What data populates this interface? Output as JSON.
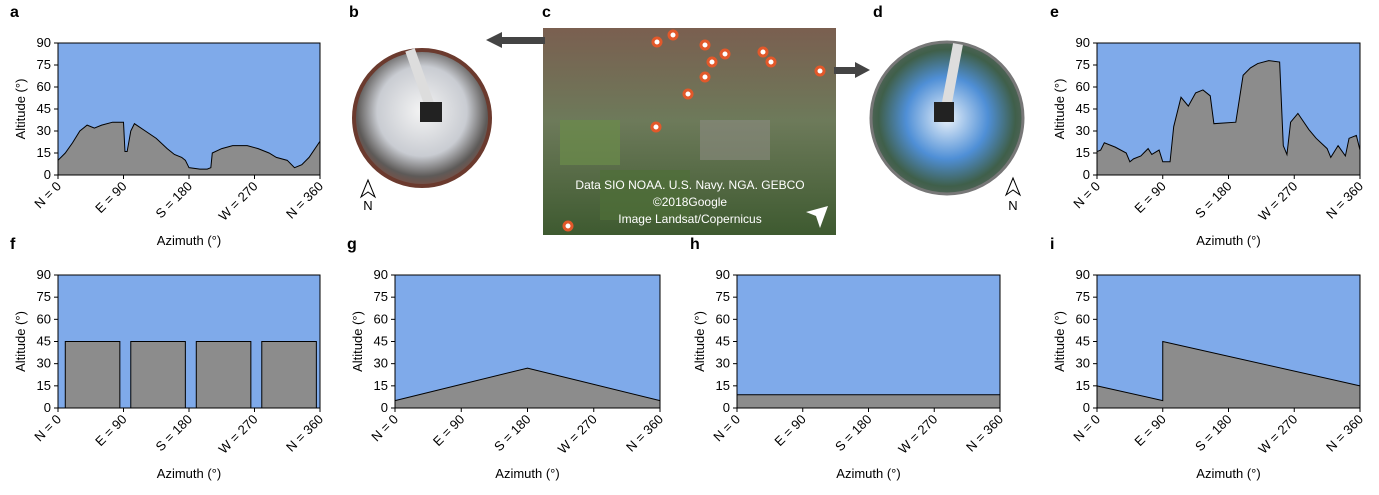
{
  "chart_data": [
    {
      "type": "area",
      "panel": "a",
      "xlabel": "Azimuth (°)",
      "ylabel": "Altitude (°)",
      "xlim": [
        0,
        360
      ],
      "ylim": [
        0,
        90
      ],
      "xticks": [
        {
          "value": 0,
          "label": "N = 0"
        },
        {
          "value": 90,
          "label": "E = 90"
        },
        {
          "value": 180,
          "label": "S = 180"
        },
        {
          "value": 270,
          "label": "W = 270"
        },
        {
          "value": 360,
          "label": "N = 360"
        }
      ],
      "yticks": [
        0,
        15,
        30,
        45,
        60,
        75,
        90
      ],
      "color": "#8c8c8c",
      "background": "#7faaea",
      "x": [
        0,
        10,
        20,
        30,
        40,
        50,
        60,
        75,
        90,
        92,
        95,
        100,
        105,
        120,
        135,
        150,
        160,
        170,
        175,
        180,
        195,
        205,
        210,
        212,
        225,
        240,
        260,
        275,
        290,
        300,
        315,
        325,
        335,
        345,
        360
      ],
      "values": [
        10,
        15,
        22,
        30,
        34,
        32,
        34,
        36,
        36,
        16,
        16,
        30,
        35,
        30,
        25,
        18,
        14,
        12,
        10,
        5,
        4,
        4,
        5,
        15,
        18,
        20,
        20,
        18,
        15,
        12,
        10,
        5,
        7,
        12,
        23
      ]
    },
    {
      "type": "area",
      "panel": "e",
      "xlabel": "Azimuth (°)",
      "ylabel": "Altitude (°)",
      "xlim": [
        0,
        360
      ],
      "ylim": [
        0,
        90
      ],
      "xticks": [
        {
          "value": 0,
          "label": "N = 0"
        },
        {
          "value": 90,
          "label": "E = 90"
        },
        {
          "value": 180,
          "label": "S = 180"
        },
        {
          "value": 270,
          "label": "W = 270"
        },
        {
          "value": 360,
          "label": "N = 360"
        }
      ],
      "yticks": [
        0,
        15,
        30,
        45,
        60,
        75,
        90
      ],
      "color": "#8c8c8c",
      "background": "#7faaea",
      "x": [
        0,
        5,
        10,
        25,
        40,
        45,
        50,
        60,
        70,
        75,
        85,
        90,
        100,
        105,
        115,
        125,
        135,
        145,
        155,
        160,
        190,
        200,
        210,
        220,
        235,
        250,
        255,
        260,
        265,
        275,
        290,
        300,
        315,
        320,
        330,
        340,
        345,
        355,
        360
      ],
      "values": [
        16,
        17,
        22,
        19,
        15,
        9,
        11,
        13,
        18,
        14,
        17,
        9,
        9,
        33,
        53,
        47,
        56,
        58,
        54,
        35,
        36,
        68,
        73,
        76,
        78,
        77,
        20,
        14,
        36,
        42,
        31,
        25,
        18,
        12,
        20,
        13,
        25,
        27,
        17
      ]
    },
    {
      "type": "area",
      "panel": "f",
      "xlabel": "Azimuth (°)",
      "ylabel": "Altitude (°)",
      "xlim": [
        0,
        360
      ],
      "ylim": [
        0,
        90
      ],
      "xticks": [
        {
          "value": 0,
          "label": "N = 0"
        },
        {
          "value": 90,
          "label": "E = 90"
        },
        {
          "value": 180,
          "label": "S = 180"
        },
        {
          "value": 270,
          "label": "W = 270"
        },
        {
          "value": 360,
          "label": "N = 360"
        }
      ],
      "yticks": [
        0,
        15,
        30,
        45,
        60,
        75,
        90
      ],
      "color": "#8c8c8c",
      "background": "#7faaea",
      "x": [
        0,
        10,
        10,
        85,
        85,
        100,
        100,
        175,
        175,
        190,
        190,
        265,
        265,
        280,
        280,
        355,
        355,
        360
      ],
      "values": [
        0,
        0,
        45,
        45,
        0,
        0,
        45,
        45,
        0,
        0,
        45,
        45,
        0,
        0,
        45,
        45,
        0,
        0
      ]
    },
    {
      "type": "area",
      "panel": "g",
      "xlabel": "Azimuth (°)",
      "ylabel": "Altitude (°)",
      "xlim": [
        0,
        360
      ],
      "ylim": [
        0,
        90
      ],
      "xticks": [
        {
          "value": 0,
          "label": "N = 0"
        },
        {
          "value": 90,
          "label": "E = 90"
        },
        {
          "value": 180,
          "label": "S = 180"
        },
        {
          "value": 270,
          "label": "W = 270"
        },
        {
          "value": 360,
          "label": "N = 360"
        }
      ],
      "yticks": [
        0,
        15,
        30,
        45,
        60,
        75,
        90
      ],
      "color": "#8c8c8c",
      "background": "#7faaea",
      "x": [
        0,
        180,
        360
      ],
      "values": [
        5,
        27,
        5
      ]
    },
    {
      "type": "area",
      "panel": "h",
      "xlabel": "Azimuth (°)",
      "ylabel": "Altitude (°)",
      "xlim": [
        0,
        360
      ],
      "ylim": [
        0,
        90
      ],
      "xticks": [
        {
          "value": 0,
          "label": "N = 0"
        },
        {
          "value": 90,
          "label": "E = 90"
        },
        {
          "value": 180,
          "label": "S = 180"
        },
        {
          "value": 270,
          "label": "W = 270"
        },
        {
          "value": 360,
          "label": "N = 360"
        }
      ],
      "yticks": [
        0,
        15,
        30,
        45,
        60,
        75,
        90
      ],
      "color": "#8c8c8c",
      "background": "#7faaea",
      "x": [
        0,
        360
      ],
      "values": [
        9,
        9
      ]
    },
    {
      "type": "area",
      "panel": "i",
      "xlabel": "Azimuth (°)",
      "ylabel": "Altitude (°)",
      "xlim": [
        0,
        360
      ],
      "ylim": [
        0,
        90
      ],
      "xticks": [
        {
          "value": 0,
          "label": "N = 0"
        },
        {
          "value": 90,
          "label": "E = 90"
        },
        {
          "value": 180,
          "label": "S = 180"
        },
        {
          "value": 270,
          "label": "W = 270"
        },
        {
          "value": 360,
          "label": "N = 360"
        }
      ],
      "yticks": [
        0,
        15,
        30,
        45,
        60,
        75,
        90
      ],
      "color": "#8c8c8c",
      "background": "#7faaea",
      "x": [
        0,
        90,
        90,
        360
      ],
      "values": [
        15,
        5,
        45,
        15
      ]
    }
  ],
  "photos": {
    "b": {
      "panel": "b",
      "compass": "N"
    },
    "c": {
      "panel": "c",
      "credits": [
        "Data SIO NOAA. U.S. Navy. NGA. GEBCO",
        "©2018Google",
        "Image Landsat/Copernicus"
      ]
    },
    "d": {
      "panel": "d",
      "compass": "N"
    }
  }
}
